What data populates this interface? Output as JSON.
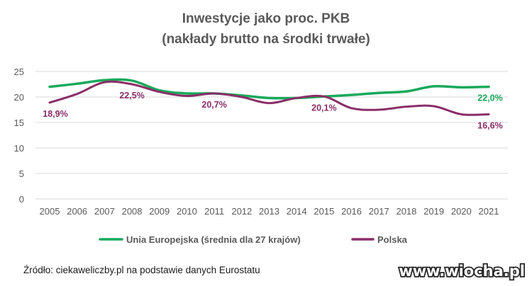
{
  "chart_data": {
    "type": "line",
    "title": "Inwestycje jako proc. PKB",
    "subtitle": "(nakłady brutto na środki trwałe)",
    "xlabel": "",
    "ylabel": "",
    "x": [
      2005,
      2006,
      2007,
      2008,
      2009,
      2010,
      2011,
      2012,
      2013,
      2014,
      2015,
      2016,
      2017,
      2018,
      2019,
      2020,
      2021
    ],
    "ylim": [
      0,
      25
    ],
    "yticks": [
      0,
      5,
      10,
      15,
      20,
      25
    ],
    "grid": true,
    "legend_position": "bottom",
    "series": [
      {
        "name": "Unia Europejska (średnia dla 27 krajów)",
        "color": "#1aa95b",
        "values": [
          22.0,
          22.6,
          23.3,
          23.2,
          21.3,
          20.7,
          20.7,
          20.3,
          19.8,
          19.8,
          20.1,
          20.4,
          20.8,
          21.1,
          22.1,
          21.9,
          22.0
        ]
      },
      {
        "name": "Polska",
        "color": "#8b2e68",
        "values": [
          18.9,
          20.6,
          22.9,
          22.5,
          21.0,
          20.2,
          20.7,
          20.0,
          18.8,
          19.8,
          20.1,
          17.8,
          17.5,
          18.1,
          18.2,
          16.6,
          16.6
        ]
      }
    ],
    "data_labels": [
      {
        "series": 1,
        "index": 0,
        "text": "18,9%",
        "pos": "below"
      },
      {
        "series": 1,
        "index": 3,
        "text": "22,5%",
        "pos": "below"
      },
      {
        "series": 1,
        "index": 6,
        "text": "20,7%",
        "pos": "below"
      },
      {
        "series": 1,
        "index": 10,
        "text": "20,1%",
        "pos": "below"
      },
      {
        "series": 0,
        "index": 16,
        "text": "22,0%",
        "pos": "below"
      },
      {
        "series": 1,
        "index": 16,
        "text": "16,6%",
        "pos": "below"
      }
    ]
  },
  "source_text": "Źródło: ciekaweliczby.pl na podstawie danych Eurostatu",
  "watermark_text": "www.wiocha.pl"
}
